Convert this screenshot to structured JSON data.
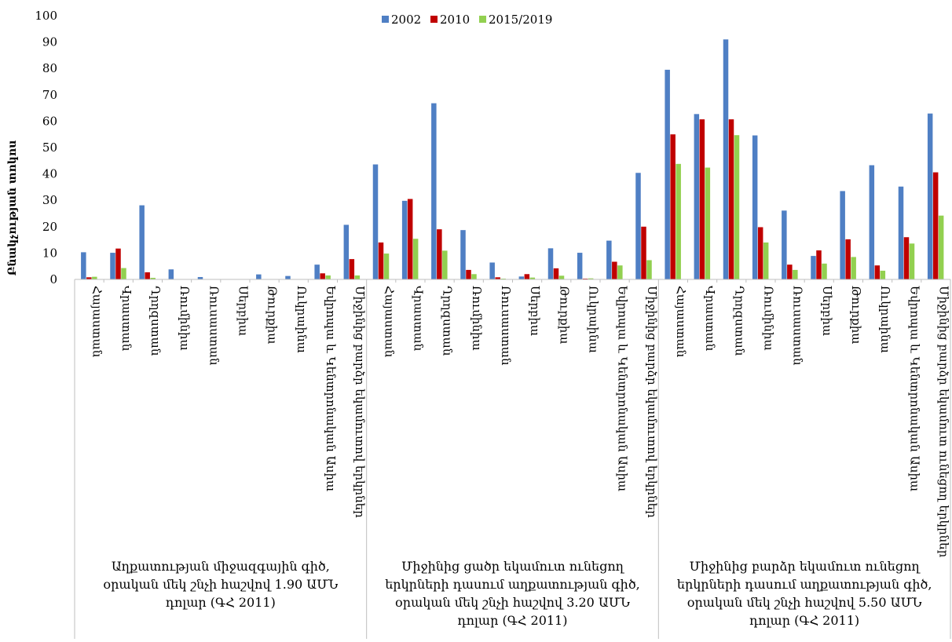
{
  "chart_data": {
    "type": "bar",
    "title": "",
    "ylabel": "Բնակչության տոկոս",
    "xlabel": "",
    "ylim": [
      0,
      100
    ],
    "yticks": [
      0,
      10,
      20,
      30,
      40,
      50,
      60,
      70,
      80,
      90,
      100
    ],
    "grid": false,
    "legend_position": "top",
    "categories": [
      "Հայաստան",
      "Վրաստան",
      "Ղրղզստան",
      "Ռումինիա",
      "Ռուսաստան",
      "Սերբիա",
      "Թուրքիա",
      "Ուկրաինա",
      "Եվրոպա և Կենտրոնական Ասիա",
      "Միջինից բարձր եկամուտով երկրներ"
    ],
    "categories_group3_last": "Միջինից բարձր եկամուտ ունեցող երկրներ",
    "groups": [
      {
        "label_lines": [
          "Աղքատության միջազգային գիծ,",
          "օրական մեկ շնչի հաշվով 1.90 ԱՄՆ",
          "դոլար (ԳՀ 2011)"
        ],
        "series_values": [
          [
            10.3,
            10.1,
            28.1,
            3.8,
            0.9,
            0.1,
            1.9,
            1.3,
            5.6,
            20.7
          ],
          [
            0.8,
            11.7,
            2.7,
            0.1,
            0.1,
            0.1,
            0.1,
            0.1,
            2.3,
            7.7
          ],
          [
            1.0,
            4.3,
            0.6,
            0.1,
            0.1,
            0.1,
            0.1,
            0.1,
            1.5,
            1.5
          ]
        ]
      },
      {
        "label_lines": [
          "Միջինից ցածր եկամուտ ունեցող",
          "երկրների դասում աղքատության գիծ,",
          "օրական մեկ շնչի հաշվով 3.20 ԱՄՆ",
          "դոլար (ԳՀ 2011)"
        ],
        "series_values": [
          [
            43.6,
            29.8,
            66.8,
            18.7,
            6.4,
            1.1,
            11.8,
            10.1,
            14.7,
            40.4
          ],
          [
            14.0,
            30.5,
            19.0,
            3.6,
            0.8,
            2.0,
            4.2,
            0.3,
            6.7,
            20.0
          ],
          [
            9.8,
            15.4,
            10.9,
            2.0,
            0.3,
            0.7,
            1.4,
            0.4,
            5.3,
            7.3
          ]
        ]
      },
      {
        "label_lines": [
          "Միջինից բարձր եկամուտ ունեցող",
          "երկրների դասում աղքատության գիծ,",
          "օրական մեկ շնչի հաշվով 5.50 ԱՄՆ",
          "դոլար (ԳՀ 2011)"
        ],
        "series_values": [
          [
            79.5,
            62.7,
            91.0,
            54.6,
            26.1,
            8.9,
            33.5,
            43.3,
            35.2,
            62.9
          ],
          [
            55.0,
            60.7,
            60.7,
            19.8,
            5.6,
            11.0,
            15.2,
            5.3,
            16.0,
            40.6
          ],
          [
            43.8,
            42.4,
            54.7,
            14.0,
            3.6,
            6.0,
            8.5,
            3.3,
            13.6,
            24.2
          ]
        ]
      }
    ],
    "series": [
      {
        "name": "2002",
        "color": "#4F7FC4"
      },
      {
        "name": "2010",
        "color": "#C00000"
      },
      {
        "name": "2015/2019",
        "color": "#92D050"
      }
    ]
  }
}
